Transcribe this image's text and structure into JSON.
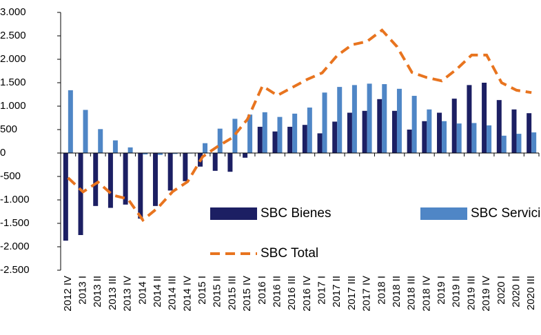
{
  "chart_data": {
    "type": "bar-line",
    "categories": [
      "2012 IV",
      "2013 I",
      "2013 II",
      "2013 III",
      "2013 IV",
      "2014 I",
      "2014 II",
      "2014 III",
      "2014 IV",
      "2015 I",
      "2015 II",
      "2015 III",
      "2015 IV",
      "2016 I",
      "2016 II",
      "2016 III",
      "2016 IV",
      "2017 I",
      "2017 II",
      "2017 III",
      "2017 IV",
      "2018 I",
      "2018 II",
      "2018 III",
      "2018 IV",
      "2019 I",
      "2019 II",
      "2019 III",
      "2019 IV",
      "2020 I",
      "2020 II",
      "2020 III"
    ],
    "series": [
      {
        "name": "SBC Bienes",
        "type": "bar",
        "color": "#1c1f63",
        "values": [
          -1870,
          -1750,
          -1130,
          -1170,
          -1100,
          -1400,
          -1130,
          -800,
          -600,
          -290,
          -380,
          -400,
          -100,
          560,
          460,
          560,
          600,
          420,
          670,
          860,
          900,
          1150,
          900,
          500,
          680,
          860,
          1160,
          1450,
          1500,
          1130,
          930,
          850
        ]
      },
      {
        "name": "SBC Servicios",
        "type": "bar",
        "color": "#4f86c6",
        "values": [
          1340,
          920,
          510,
          270,
          120,
          -30,
          -40,
          -20,
          -10,
          210,
          520,
          730,
          820,
          870,
          770,
          840,
          970,
          1290,
          1410,
          1450,
          1480,
          1470,
          1370,
          1220,
          930,
          680,
          630,
          640,
          590,
          370,
          410,
          440
        ]
      },
      {
        "name": "SBC Total",
        "type": "line",
        "color": "#e8741f",
        "dashed": true,
        "values": [
          -530,
          -830,
          -620,
          -900,
          -980,
          -1430,
          -1170,
          -820,
          -610,
          -80,
          140,
          330,
          720,
          1430,
          1230,
          1400,
          1570,
          1710,
          2080,
          2310,
          2380,
          2620,
          2270,
          1720,
          1610,
          1540,
          1790,
          2090,
          2090,
          1500,
          1340,
          1290
        ]
      }
    ],
    "ylim": [
      -2500,
      3000
    ],
    "yticks": [
      {
        "value": -2500,
        "label": "-2.500"
      },
      {
        "value": -2000,
        "label": "-2.000"
      },
      {
        "value": -1500,
        "label": "-1.500"
      },
      {
        "value": -1000,
        "label": "-1.000"
      },
      -500,
      0,
      500,
      {
        "value": 1000,
        "label": "1.000"
      },
      {
        "value": 1500,
        "label": "1.500"
      },
      {
        "value": 2000,
        "label": "2.000"
      },
      {
        "value": 2500,
        "label": "2.500"
      },
      {
        "value": 3000,
        "label": "3.000"
      }
    ],
    "legend": "bottom",
    "grid": false
  }
}
